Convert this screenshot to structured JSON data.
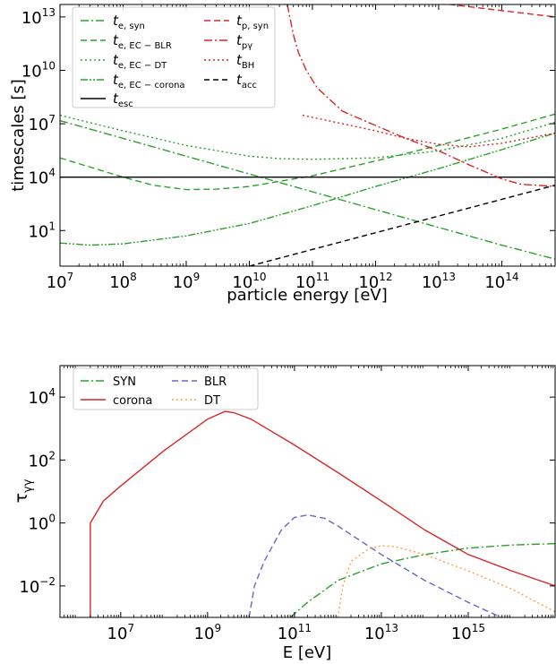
{
  "chart_data": [
    {
      "type": "line",
      "xlabel": "particle energy [eV]",
      "ylabel": "timescales [s]",
      "xscale": "log",
      "yscale": "log",
      "xlim": [
        10000000,
        700000000000000
      ],
      "ylim": [
        0.1,
        50000000000000
      ],
      "grid": false,
      "legend_placement": "top-left, two columns",
      "xticks": [
        {
          "value": 10000000,
          "base": "10",
          "exp": "7"
        },
        {
          "value": 100000000,
          "base": "10",
          "exp": "8"
        },
        {
          "value": 1000000000,
          "base": "10",
          "exp": "9"
        },
        {
          "value": 10000000000,
          "base": "10",
          "exp": "10"
        },
        {
          "value": 100000000000,
          "base": "10",
          "exp": "11"
        },
        {
          "value": 1000000000000,
          "base": "10",
          "exp": "12"
        },
        {
          "value": 10000000000000,
          "base": "10",
          "exp": "13"
        },
        {
          "value": 100000000000000,
          "base": "10",
          "exp": "14"
        }
      ],
      "yticks": [
        {
          "value": 10,
          "base": "10",
          "exp": "1"
        },
        {
          "value": 10000,
          "base": "10",
          "exp": "4"
        },
        {
          "value": 10000000,
          "base": "10",
          "exp": "7"
        },
        {
          "value": 10000000000,
          "base": "10",
          "exp": "10"
        },
        {
          "value": 10000000000000,
          "base": "10",
          "exp": "13"
        }
      ],
      "series": [
        {
          "base": "t",
          "sub": "e, syn",
          "color": "#2ca02c",
          "dash": "9,3,2,3",
          "x": [
            10000000,
            100000000,
            1000000000,
            10000000000,
            100000000000,
            1000000000000,
            10000000000000,
            100000000000000,
            700000000000000
          ],
          "y": [
            15000000,
            1500000,
            150000,
            15000,
            1500,
            150,
            15,
            1.5,
            0.25
          ]
        },
        {
          "base": "t",
          "sub": "e, EC − BLR",
          "color": "#2ca02c",
          "dash": "7,4",
          "x": [
            10000000,
            100000000,
            300000000,
            1000000000,
            3000000000,
            10000000000,
            100000000000,
            1000000000000,
            10000000000000,
            100000000000000,
            700000000000000
          ],
          "y": [
            120000,
            10000,
            3500,
            2000,
            2100,
            3000,
            12000,
            80000,
            600000,
            5000000,
            35000000
          ]
        },
        {
          "base": "t",
          "sub": "e, EC − DT",
          "color": "#2ca02c",
          "dash": "2,3",
          "x": [
            10000000,
            100000000,
            1000000000,
            10000000000,
            30000000000,
            100000000000,
            1000000000000,
            10000000000000,
            100000000000000,
            700000000000000
          ],
          "y": [
            30000000,
            4000000,
            600000,
            150000,
            110000,
            100000,
            120000,
            300000,
            1500000,
            12000000
          ]
        },
        {
          "base": "t",
          "sub": "e, EC − corona",
          "color": "#2ca02c",
          "dash": "8,2,2,2,2,2",
          "x": [
            10000000,
            30000000,
            100000000,
            1000000000,
            10000000000,
            100000000000,
            1000000000000,
            10000000000000,
            100000000000000,
            700000000000000
          ],
          "y": [
            2,
            1.5,
            1.8,
            5,
            25,
            250,
            3000,
            30000,
            350000,
            3000000
          ]
        },
        {
          "base": "t",
          "sub": "esc",
          "color": "#000000",
          "dash": "",
          "x": [
            10000000,
            700000000000000
          ],
          "y": [
            10000,
            10000
          ]
        },
        {
          "base": "t",
          "sub": "p, syn",
          "color": "#d62728",
          "dash": "7,4",
          "x": [
            5000000000000,
            700000000000000
          ],
          "y": [
            80000000000000,
            10000000000000
          ]
        },
        {
          "base": "t",
          "sub": "pγ",
          "color": "#d62728",
          "dash": "9,3,2,3",
          "x": [
            40000000000,
            50000000000,
            60000000000,
            80000000000,
            120000000000,
            300000000000,
            1000000000000,
            3000000000000,
            10000000000000,
            30000000000000,
            100000000000000,
            200000000000000,
            700000000000000
          ],
          "y": [
            50000000000000,
            1000000000000,
            100000000000,
            10000000000,
            1000000000,
            50000000,
            8000000,
            1500000,
            300000,
            50000,
            8000,
            4000,
            3000
          ]
        },
        {
          "base": "t",
          "sub": "BH",
          "color": "#d62728",
          "dash": "2,3",
          "x": [
            70000000000,
            300000000000,
            1000000000000,
            3000000000000,
            10000000000000,
            30000000000000,
            100000000000000,
            700000000000000
          ],
          "y": [
            30000000,
            10000000,
            4000000,
            1500000,
            700000,
            500000,
            800000,
            3000000
          ]
        },
        {
          "base": "t",
          "sub": "acc",
          "color": "#000000",
          "dash": "6,4",
          "x": [
            10000000000,
            700000000000000
          ],
          "y": [
            0.1,
            3500
          ]
        }
      ]
    },
    {
      "type": "line",
      "xlabel": "E [eV]",
      "ylabel": "τγγ",
      "xscale": "log",
      "yscale": "log",
      "xlim": [
        400000,
        100000000000000000
      ],
      "ylim": [
        0.001,
        100000
      ],
      "grid": false,
      "legend_placement": "top-left, two columns",
      "xticks": [
        {
          "value": 10000000,
          "base": "10",
          "exp": "7"
        },
        {
          "value": 1000000000,
          "base": "10",
          "exp": "9"
        },
        {
          "value": 100000000000,
          "base": "10",
          "exp": "11"
        },
        {
          "value": 10000000000000,
          "base": "10",
          "exp": "13"
        },
        {
          "value": 1000000000000000,
          "base": "10",
          "exp": "15"
        }
      ],
      "yticks": [
        {
          "value": 0.01,
          "base": "10",
          "exp": "−2"
        },
        {
          "value": 1,
          "base": "10",
          "exp": "0"
        },
        {
          "value": 100,
          "base": "10",
          "exp": "2"
        },
        {
          "value": 10000,
          "base": "10",
          "exp": "4"
        }
      ],
      "series": [
        {
          "name": "SYN",
          "color": "#2ca02c",
          "dash": "9,3,2,3",
          "x": [
            80000000000,
            200000000000,
            1000000000000,
            10000000000000,
            100000000000000,
            1000000000000000,
            10000000000000000,
            100000000000000000
          ],
          "y": [
            0.001,
            0.003,
            0.015,
            0.05,
            0.1,
            0.16,
            0.2,
            0.22
          ]
        },
        {
          "name": "corona",
          "color": "#d62728",
          "dash": "",
          "x": [
            2000000,
            2000000,
            4000000,
            10000000,
            100000000,
            1000000000,
            2500000000,
            4000000000,
            10000000000,
            100000000000,
            1000000000000,
            10000000000000,
            100000000000000,
            1000000000000000,
            10000000000000000,
            100000000000000000
          ],
          "y": [
            0.001,
            1,
            5,
            15,
            200,
            2000,
            3500,
            3200,
            2000,
            300,
            40,
            5,
            0.6,
            0.1,
            0.03,
            0.01
          ]
        },
        {
          "name": "BLR",
          "color": "#6666cc",
          "dash": "7,4",
          "x": [
            9000000000,
            12000000000,
            20000000000,
            50000000000,
            100000000000,
            200000000000,
            500000000000,
            1000000000000,
            10000000000000,
            100000000000000,
            1000000000000000,
            10000000000000000
          ],
          "y": [
            0.001,
            0.01,
            0.06,
            0.6,
            1.5,
            1.8,
            1.4,
            0.8,
            0.1,
            0.015,
            0.003,
            0.0007
          ]
        },
        {
          "name": "DT",
          "color": "#ff9f40",
          "dash": "2,3",
          "x": [
            1000000000000,
            1300000000000,
            2000000000000,
            5000000000000,
            10000000000000,
            20000000000000,
            100000000000000,
            1000000000000000,
            10000000000000000,
            100000000000000000
          ],
          "y": [
            0.001,
            0.01,
            0.06,
            0.15,
            0.19,
            0.18,
            0.1,
            0.03,
            0.008,
            0.0015
          ]
        }
      ]
    }
  ]
}
